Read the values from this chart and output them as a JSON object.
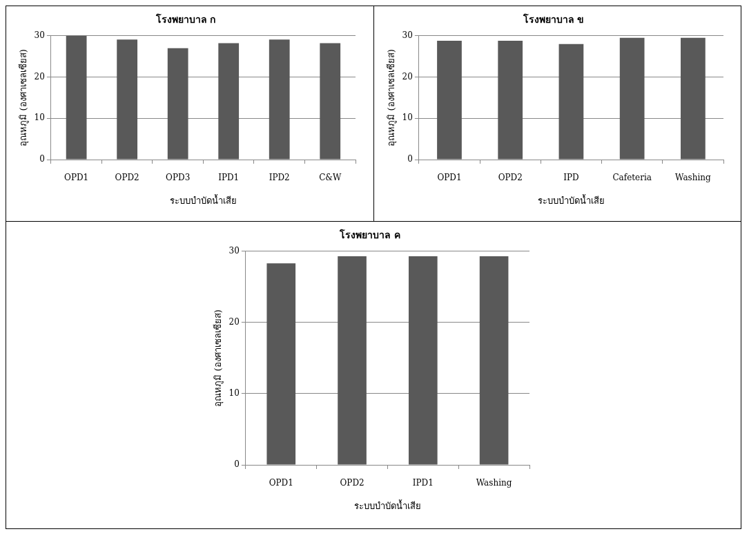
{
  "chart_data": [
    {
      "type": "bar",
      "title": "โรงพยาบาล ก",
      "xlabel": "ระบบบำบัดน้ำเสีย",
      "ylabel": "อุณหภูมิ (องศาเซลเซียส)",
      "categories": [
        "OPD1",
        "OPD2",
        "OPD3",
        "IPD1",
        "IPD2",
        "C&W"
      ],
      "values": [
        30,
        29.1,
        27,
        28.2,
        29.1,
        28.2
      ],
      "color": "#595959",
      "ylim": [
        0,
        30
      ],
      "yticks": [
        0,
        10,
        20,
        30
      ],
      "grid": "y"
    },
    {
      "type": "bar",
      "title": "โรงพยาบาล ข",
      "xlabel": "ระบบบำบัดน้ำเสีย",
      "ylabel": "อุณหภูมิ (องศาเซลเซียส)",
      "categories": [
        "OPD1",
        "OPD2",
        "IPD",
        "Cafeteria",
        "Washing"
      ],
      "values": [
        28.8,
        28.8,
        28,
        29.5,
        29.5
      ],
      "color": "#595959",
      "ylim": [
        0,
        30
      ],
      "yticks": [
        0,
        10,
        20,
        30
      ],
      "grid": "y"
    },
    {
      "type": "bar",
      "title": "โรงพยาบาล ค",
      "xlabel": "ระบบบำบัดน้ำเสีย",
      "ylabel": "อุณหภูมิ (องศาเซลเซียส)",
      "categories": [
        "OPD1",
        "OPD2",
        "IPD1",
        "Washing"
      ],
      "values": [
        28.3,
        29.3,
        29.3,
        29.3
      ],
      "color": "#595959",
      "ylim": [
        0,
        30
      ],
      "yticks": [
        0,
        10,
        20,
        30
      ],
      "grid": "y"
    }
  ]
}
